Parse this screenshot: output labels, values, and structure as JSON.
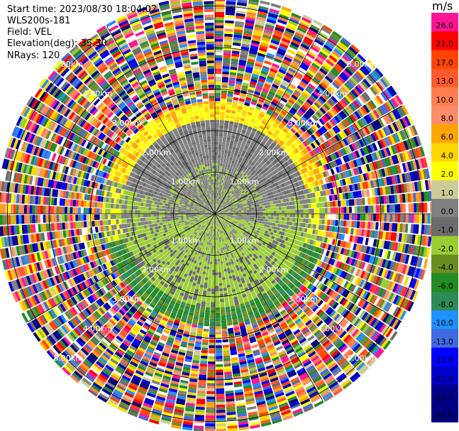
{
  "header": {
    "start_time": "Start time: 2023/08/30 18:04:02",
    "site": "WLS200s-181",
    "field": "Field: VEL",
    "elevation": "Elevation(deg): 35.30",
    "nrays": "NRays: 120"
  },
  "colorbar": {
    "unit": "m/s",
    "ticks": [
      "26.0",
      "21.0",
      "17.0",
      "13.0",
      "10.0",
      "8.0",
      "6.0",
      "4.0",
      "2.0",
      "1.0",
      "0.0",
      "-1.0",
      "-2.0",
      "-4.0",
      "-6.0",
      "-8.0",
      "-10.0",
      "-13.0",
      "-17.0",
      "-21.0",
      "-26.0",
      "-30.0"
    ],
    "colors": [
      "#ff1493",
      "#ff0000",
      "#ff4500",
      "#ff5a2a",
      "#ff7f50",
      "#ff8c69",
      "#ffa500",
      "#ffd700",
      "#ffff00",
      "#cccc99",
      "#808080",
      "#6b6b6b",
      "#9acd32",
      "#6b8e23",
      "#228b22",
      "#2e8b57",
      "#1e90ff",
      "#4169e1",
      "#0000ff",
      "#0000cd",
      "#00008b",
      "#000080"
    ]
  },
  "chart_data": {
    "type": "heatmap",
    "projection": "PPI polar",
    "field": "VEL",
    "nrays": 120,
    "range_rings_label": "1.00km",
    "range_ring_labels": [
      "1.00km",
      "2.00km",
      "3.00km",
      "4.00km",
      "5.00km"
    ],
    "rings_km": [
      1,
      2,
      3,
      4,
      5
    ],
    "value_range": [
      -30,
      26
    ],
    "pattern": {
      "inner_km": [
        0,
        2.3
      ],
      "inner_north_velocity": "near zero grey",
      "inner_south_velocity": "light green (-1 to -2)",
      "mid_north_velocity": "yellow/orange (2 to 6)",
      "mid_south_velocity": "green (-4 to -8)",
      "outer_km": [
        2.5,
        5.2
      ],
      "outer_velocity": "noisy, all values"
    }
  }
}
